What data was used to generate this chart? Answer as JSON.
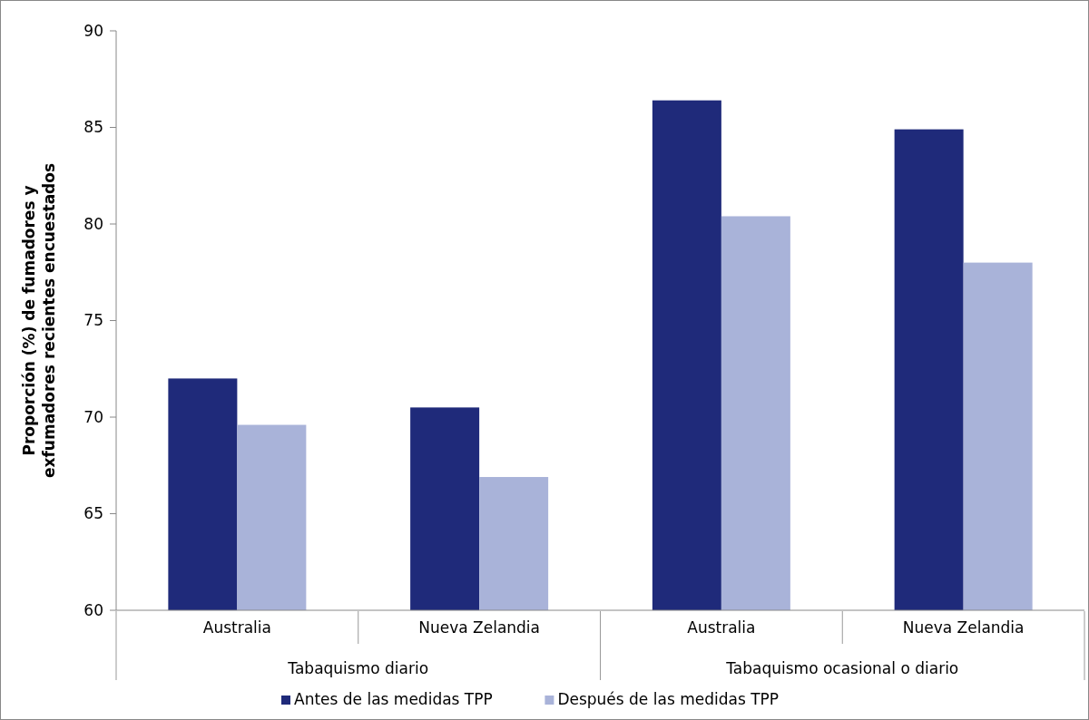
{
  "chart_data": {
    "type": "bar",
    "ylabel": "Proporción (%) de fumadores y exfumadores recientes encuestados",
    "categories": [
      "Australia",
      "Nueva Zelandia",
      "Australia",
      "Nueva Zelandia"
    ],
    "annotations": [
      "Tabaquismo diario",
      "Tabaquismo ocasional o diario"
    ],
    "series": [
      {
        "name": "Antes de las medidas TPP",
        "color": "#1f2a7a",
        "values": [
          72.0,
          70.5,
          86.4,
          84.9
        ]
      },
      {
        "name": "Después de las medidas TPP",
        "color": "#a9b3d9",
        "values": [
          69.6,
          66.9,
          80.4,
          78.0
        ]
      }
    ],
    "ylim": [
      60,
      90
    ],
    "yticks": [
      60,
      65,
      70,
      75,
      80,
      85,
      90
    ],
    "grid": false,
    "legend": "bottom"
  }
}
